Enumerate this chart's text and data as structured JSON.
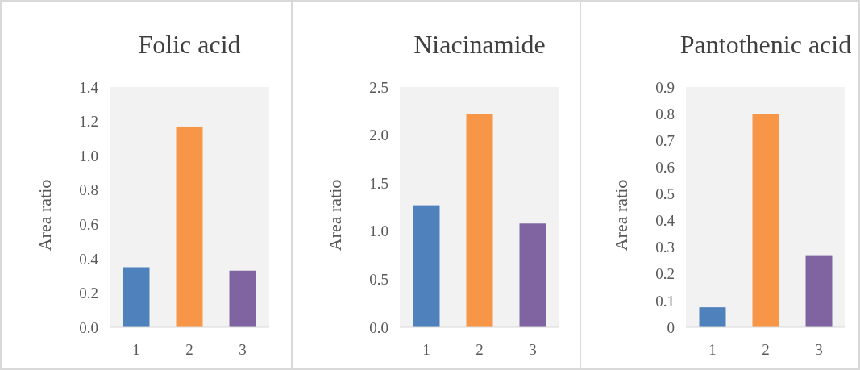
{
  "chart_data": [
    {
      "type": "bar",
      "title": "Folic acid",
      "ylabel": "Area ratio",
      "categories": [
        "1",
        "2",
        "3"
      ],
      "values": [
        0.35,
        1.17,
        0.33
      ],
      "colors": [
        "#4f81bd",
        "#f79646",
        "#8064a2"
      ],
      "ylim": [
        0,
        1.4
      ],
      "yticks": [
        {
          "value": 0,
          "label": "0.0"
        },
        0.2,
        0.4,
        0.6,
        0.8,
        {
          "value": 1,
          "label": "1.0"
        },
        1.2,
        1.4
      ]
    },
    {
      "type": "bar",
      "title": "Niacinamide",
      "ylabel": "Area ratio",
      "categories": [
        "1",
        "2",
        "3"
      ],
      "values": [
        1.27,
        2.22,
        1.08
      ],
      "colors": [
        "#4f81bd",
        "#f79646",
        "#8064a2"
      ],
      "ylim": [
        0,
        2.5
      ],
      "yticks": [
        {
          "value": 0,
          "label": "0.0"
        },
        0.5,
        {
          "value": 1,
          "label": "1.0"
        },
        1.5,
        {
          "value": 2,
          "label": "2.0"
        },
        2.5
      ]
    },
    {
      "type": "bar",
      "title": "Pantothenic acid",
      "ylabel": "Area ratio",
      "categories": [
        "1",
        "2",
        "3"
      ],
      "values": [
        0.075,
        0.8,
        0.27
      ],
      "colors": [
        "#4f81bd",
        "#f79646",
        "#8064a2"
      ],
      "ylim": [
        0,
        0.9
      ],
      "yticks": [
        0,
        0.1,
        0.2,
        0.3,
        0.4,
        0.5,
        0.6,
        0.7,
        0.8,
        0.9
      ]
    }
  ]
}
